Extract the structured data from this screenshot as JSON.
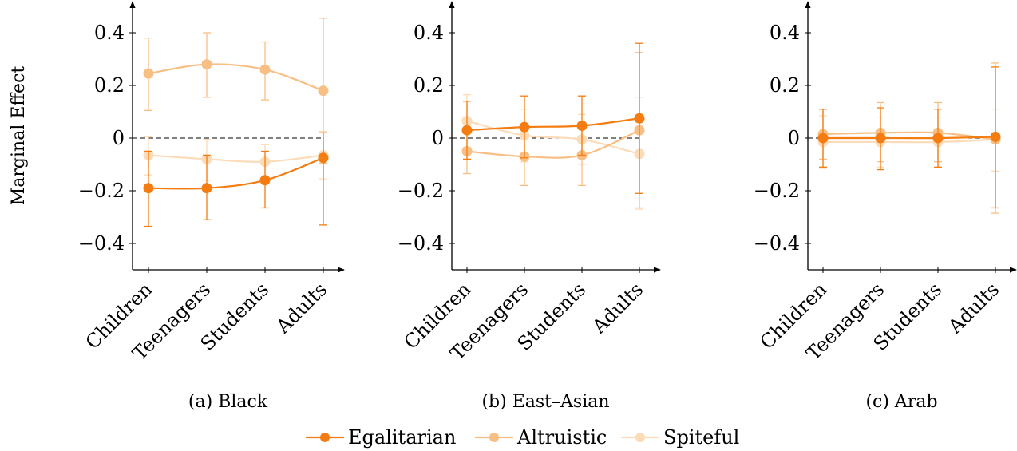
{
  "figure": {
    "ylabel": "Marginal Effect",
    "legend": [
      "Egalitarian",
      "Altruistic",
      "Spiteful"
    ]
  },
  "colors": {
    "Egalitarian": "#F47C10",
    "Altruistic": "#F8BF85",
    "Spiteful": "#FBDBB8"
  },
  "chart_data": [
    {
      "type": "line",
      "caption": "(a) Black",
      "categories": [
        "Children",
        "Teenagers",
        "Students",
        "Adults"
      ],
      "ylim": [
        -0.5,
        0.5
      ],
      "yticks": [
        -0.4,
        -0.2,
        0,
        0.2,
        0.4
      ],
      "ytick_labels": [
        "−0.4",
        "−0.2",
        "0",
        "0.2",
        "0.4"
      ],
      "reference_line": 0,
      "series": [
        {
          "name": "Egalitarian",
          "values": [
            -0.19,
            -0.19,
            -0.16,
            -0.075
          ],
          "err_low": [
            -0.335,
            -0.31,
            -0.265,
            -0.33
          ],
          "err_high": [
            -0.05,
            -0.065,
            -0.05,
            0.02
          ]
        },
        {
          "name": "Altruistic",
          "values": [
            0.245,
            0.28,
            0.26,
            0.18
          ],
          "err_low": [
            0.105,
            0.155,
            0.145,
            -0.095
          ],
          "err_high": [
            0.38,
            0.4,
            0.365,
            0.455
          ]
        },
        {
          "name": "Spiteful",
          "values": [
            -0.065,
            -0.08,
            -0.09,
            -0.065
          ],
          "err_low": [
            -0.14,
            -0.16,
            -0.155,
            -0.155
          ],
          "err_high": [
            0.005,
            -0.005,
            -0.025,
            0.025
          ]
        }
      ]
    },
    {
      "type": "line",
      "caption": "(b) East–Asian",
      "categories": [
        "Children",
        "Teenagers",
        "Students",
        "Adults"
      ],
      "ylim": [
        -0.5,
        0.5
      ],
      "yticks": [
        -0.4,
        -0.2,
        0,
        0.2,
        0.4
      ],
      "ytick_labels": [
        "−0.4",
        "−0.2",
        "0",
        "0.2",
        "0.4"
      ],
      "reference_line": 0,
      "series": [
        {
          "name": "Egalitarian",
          "values": [
            0.03,
            0.042,
            0.047,
            0.075
          ],
          "err_low": [
            -0.08,
            -0.075,
            -0.065,
            -0.21
          ],
          "err_high": [
            0.14,
            0.16,
            0.16,
            0.36
          ]
        },
        {
          "name": "Altruistic",
          "values": [
            -0.05,
            -0.07,
            -0.065,
            0.03
          ],
          "err_low": [
            -0.135,
            -0.18,
            -0.18,
            -0.265
          ],
          "err_high": [
            0.035,
            0.04,
            0.05,
            0.325
          ]
        },
        {
          "name": "Spiteful",
          "values": [
            0.065,
            0.01,
            -0.005,
            -0.06
          ],
          "err_low": [
            -0.035,
            -0.09,
            -0.1,
            -0.27
          ],
          "err_high": [
            0.165,
            0.11,
            0.09,
            0.155
          ]
        }
      ]
    },
    {
      "type": "line",
      "caption": "(c) Arab",
      "categories": [
        "Children",
        "Teenagers",
        "Students",
        "Adults"
      ],
      "ylim": [
        -0.5,
        0.5
      ],
      "yticks": [
        -0.4,
        -0.2,
        0,
        0.2,
        0.4
      ],
      "ytick_labels": [
        "−0.4",
        "−0.2",
        "0",
        "0.2",
        "0.4"
      ],
      "reference_line": 0,
      "series": [
        {
          "name": "Egalitarian",
          "values": [
            0.0,
            0.0,
            0.0,
            0.005
          ],
          "err_low": [
            -0.11,
            -0.12,
            -0.11,
            -0.265
          ],
          "err_high": [
            0.11,
            0.115,
            0.11,
            0.27
          ]
        },
        {
          "name": "Altruistic",
          "values": [
            0.015,
            0.02,
            0.02,
            -0.005
          ],
          "err_low": [
            -0.08,
            -0.09,
            -0.09,
            -0.285
          ],
          "err_high": [
            0.11,
            0.135,
            0.135,
            0.285
          ]
        },
        {
          "name": "Spiteful",
          "values": [
            -0.015,
            -0.015,
            -0.015,
            -0.005
          ],
          "err_low": [
            -0.115,
            -0.11,
            -0.11,
            -0.125
          ],
          "err_high": [
            0.085,
            0.08,
            0.08,
            0.11
          ]
        }
      ]
    }
  ]
}
